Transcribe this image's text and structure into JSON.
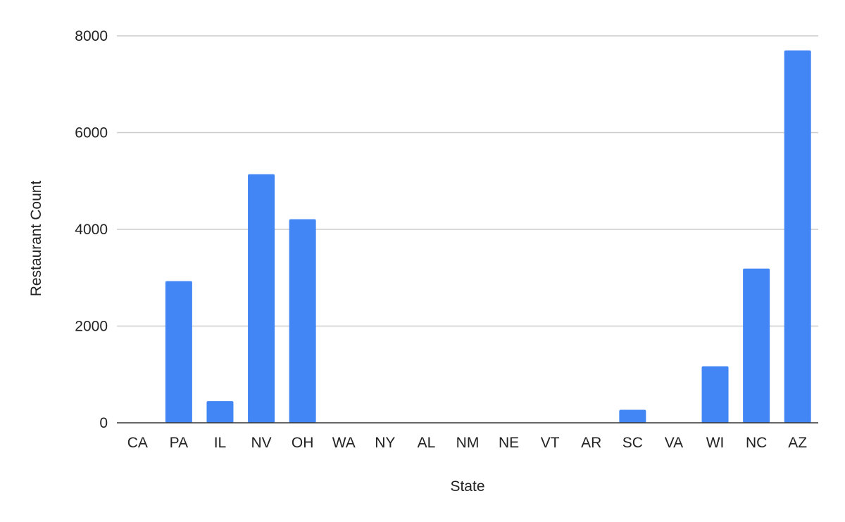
{
  "chart_data": {
    "type": "bar",
    "title": "",
    "xlabel": "State",
    "ylabel": "Restaurant Count",
    "categories": [
      "CA",
      "PA",
      "IL",
      "NV",
      "OH",
      "WA",
      "NY",
      "AL",
      "NM",
      "NE",
      "VT",
      "AR",
      "SC",
      "VA",
      "WI",
      "NC",
      "AZ"
    ],
    "values": [
      2,
      2930,
      450,
      5140,
      4210,
      4,
      3,
      1,
      2,
      1,
      1,
      1,
      270,
      1,
      1170,
      3190,
      7700
    ],
    "ylim": [
      0,
      8000
    ],
    "yticks": [
      0,
      2000,
      4000,
      6000,
      8000
    ],
    "grid": true,
    "legend": "none",
    "bar_color": "#4285f4",
    "grid_color": "#cccccc",
    "axis_color": "#333333"
  }
}
